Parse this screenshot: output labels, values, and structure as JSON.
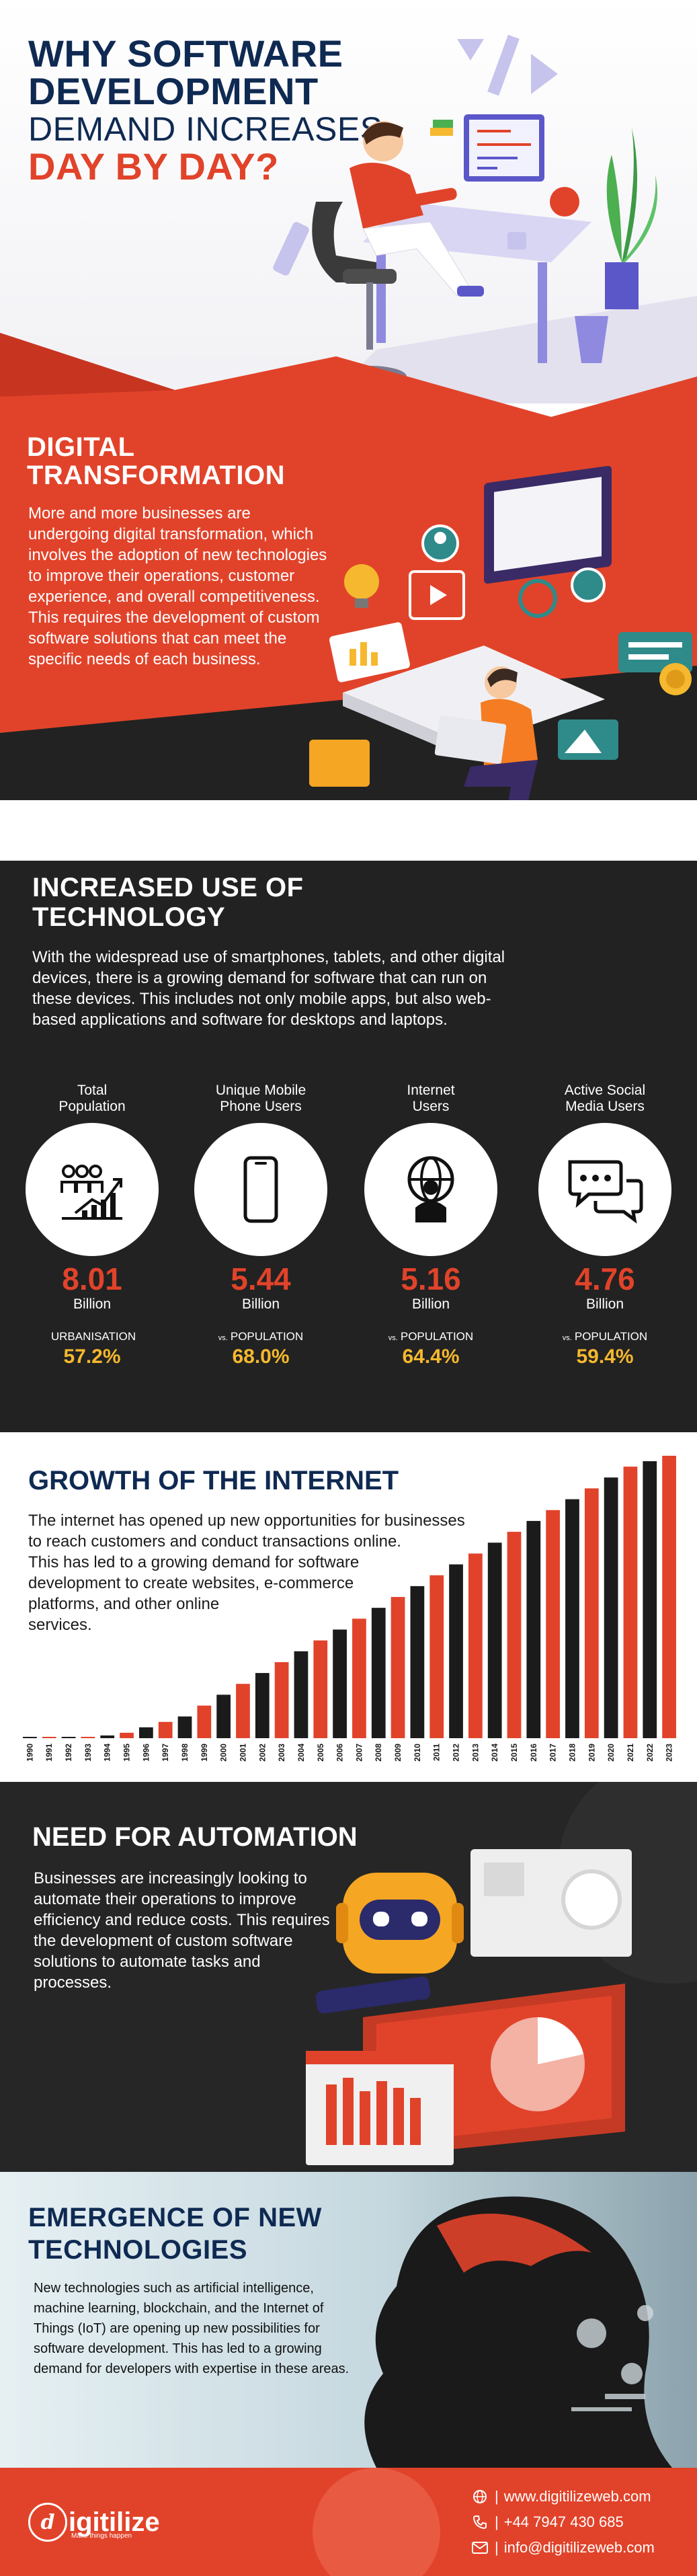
{
  "hero": {
    "line1": "WHY SOFTWARE",
    "line2": "DEVELOPMENT",
    "line3": "DEMAND INCREASES",
    "line4": "DAY BY DAY?"
  },
  "digital": {
    "heading_line1": "DIGITAL",
    "heading_line2": "TRANSFORMATION",
    "body": "More and more businesses are undergoing digital transformation, which involves the adoption of new technologies to improve their operations, customer experience, and overall competitiveness. This requires the development of custom software solutions that can meet the specific needs of each business."
  },
  "technology": {
    "heading_line1": "INCREASED USE OF",
    "heading_line2": "TECHNOLOGY",
    "body": "With the widespread use of smartphones, tablets, and other digital devices, there is a growing demand for software that can run on these devices. This includes not only mobile apps, but also web-based applications and software for desktops and laptops.",
    "stats": [
      {
        "label_line1": "Total",
        "label_line2": "Population",
        "value": "8.01",
        "unit": "Billion",
        "vs": "",
        "sub_label": "URBANISATION",
        "sub_value": "57.2%",
        "icon": "population-growth-icon"
      },
      {
        "label_line1": "Unique Mobile",
        "label_line2": "Phone Users",
        "value": "5.44",
        "unit": "Billion",
        "vs": "vs.",
        "sub_label": "POPULATION",
        "sub_value": "68.0%",
        "icon": "mobile-phone-icon"
      },
      {
        "label_line1": "Internet",
        "label_line2": "Users",
        "value": "5.16",
        "unit": "Billion",
        "vs": "vs.",
        "sub_label": "POPULATION",
        "sub_value": "64.4%",
        "icon": "internet-user-icon"
      },
      {
        "label_line1": "Active Social",
        "label_line2": "Media Users",
        "value": "4.76",
        "unit": "Billion",
        "vs": "vs.",
        "sub_label": "POPULATION",
        "sub_value": "59.4%",
        "icon": "chat-bubbles-icon"
      }
    ]
  },
  "internet": {
    "heading": "GROWTH OF THE INTERNET",
    "body_line1": "The internet has opened up new opportunities for businesses",
    "body_line2": "to reach customers and conduct transactions online.",
    "body_line3": "This has led to a growing demand for software",
    "body_line4": "development to create websites, e-commerce",
    "body_line5": "platforms, and other online",
    "body_line6": "services."
  },
  "chart_data": {
    "type": "bar",
    "categories": [
      "1990",
      "1991",
      "1992",
      "1993",
      "1994",
      "1995",
      "1996",
      "1997",
      "1998",
      "1999",
      "2000",
      "2001",
      "2002",
      "2003",
      "2004",
      "2005",
      "2006",
      "2007",
      "2008",
      "2009",
      "2010",
      "2011",
      "2012",
      "2013",
      "2014",
      "2015",
      "2016",
      "2017",
      "2018",
      "2019",
      "2020",
      "2021",
      "2022",
      "2023"
    ],
    "values": [
      0.1,
      0.2,
      0.3,
      0.5,
      1,
      2,
      4,
      6,
      8,
      12,
      16,
      20,
      24,
      28,
      32,
      36,
      40,
      44,
      48,
      52,
      56,
      60,
      64,
      68,
      72,
      76,
      80,
      84,
      88,
      92,
      96,
      100,
      102,
      104
    ],
    "colors": [
      "#1b1b1b",
      "#e1432a"
    ],
    "ylim": [
      0,
      104
    ],
    "xlabel": "",
    "ylabel": "",
    "grid": false
  },
  "automation": {
    "heading": "NEED FOR AUTOMATION",
    "body": "Businesses are increasingly looking to automate their operations to improve efficiency and reduce costs. This requires the development of custom software solutions to automate tasks and processes."
  },
  "emerging": {
    "heading_line1": "EMERGENCE OF NEW",
    "heading_line2": "TECHNOLOGIES",
    "body": "New technologies such as artificial intelligence, machine learning, blockchain, and the Internet of Things (IoT) are opening up new possibilities for software development. This has led to a growing demand for developers with expertise in these areas."
  },
  "footer": {
    "logo_mark": "d",
    "logo_name": "igitilize",
    "logo_tagline": "Make things happen",
    "website": "www.digitilizeweb.com",
    "phone": "+44 7947 430 685",
    "email": "info@digitilizeweb.com",
    "separator": "|"
  },
  "colors": {
    "accent": "#e1432a",
    "navy": "#0f2a52",
    "dark": "#222222",
    "gold": "#f5b82e"
  }
}
